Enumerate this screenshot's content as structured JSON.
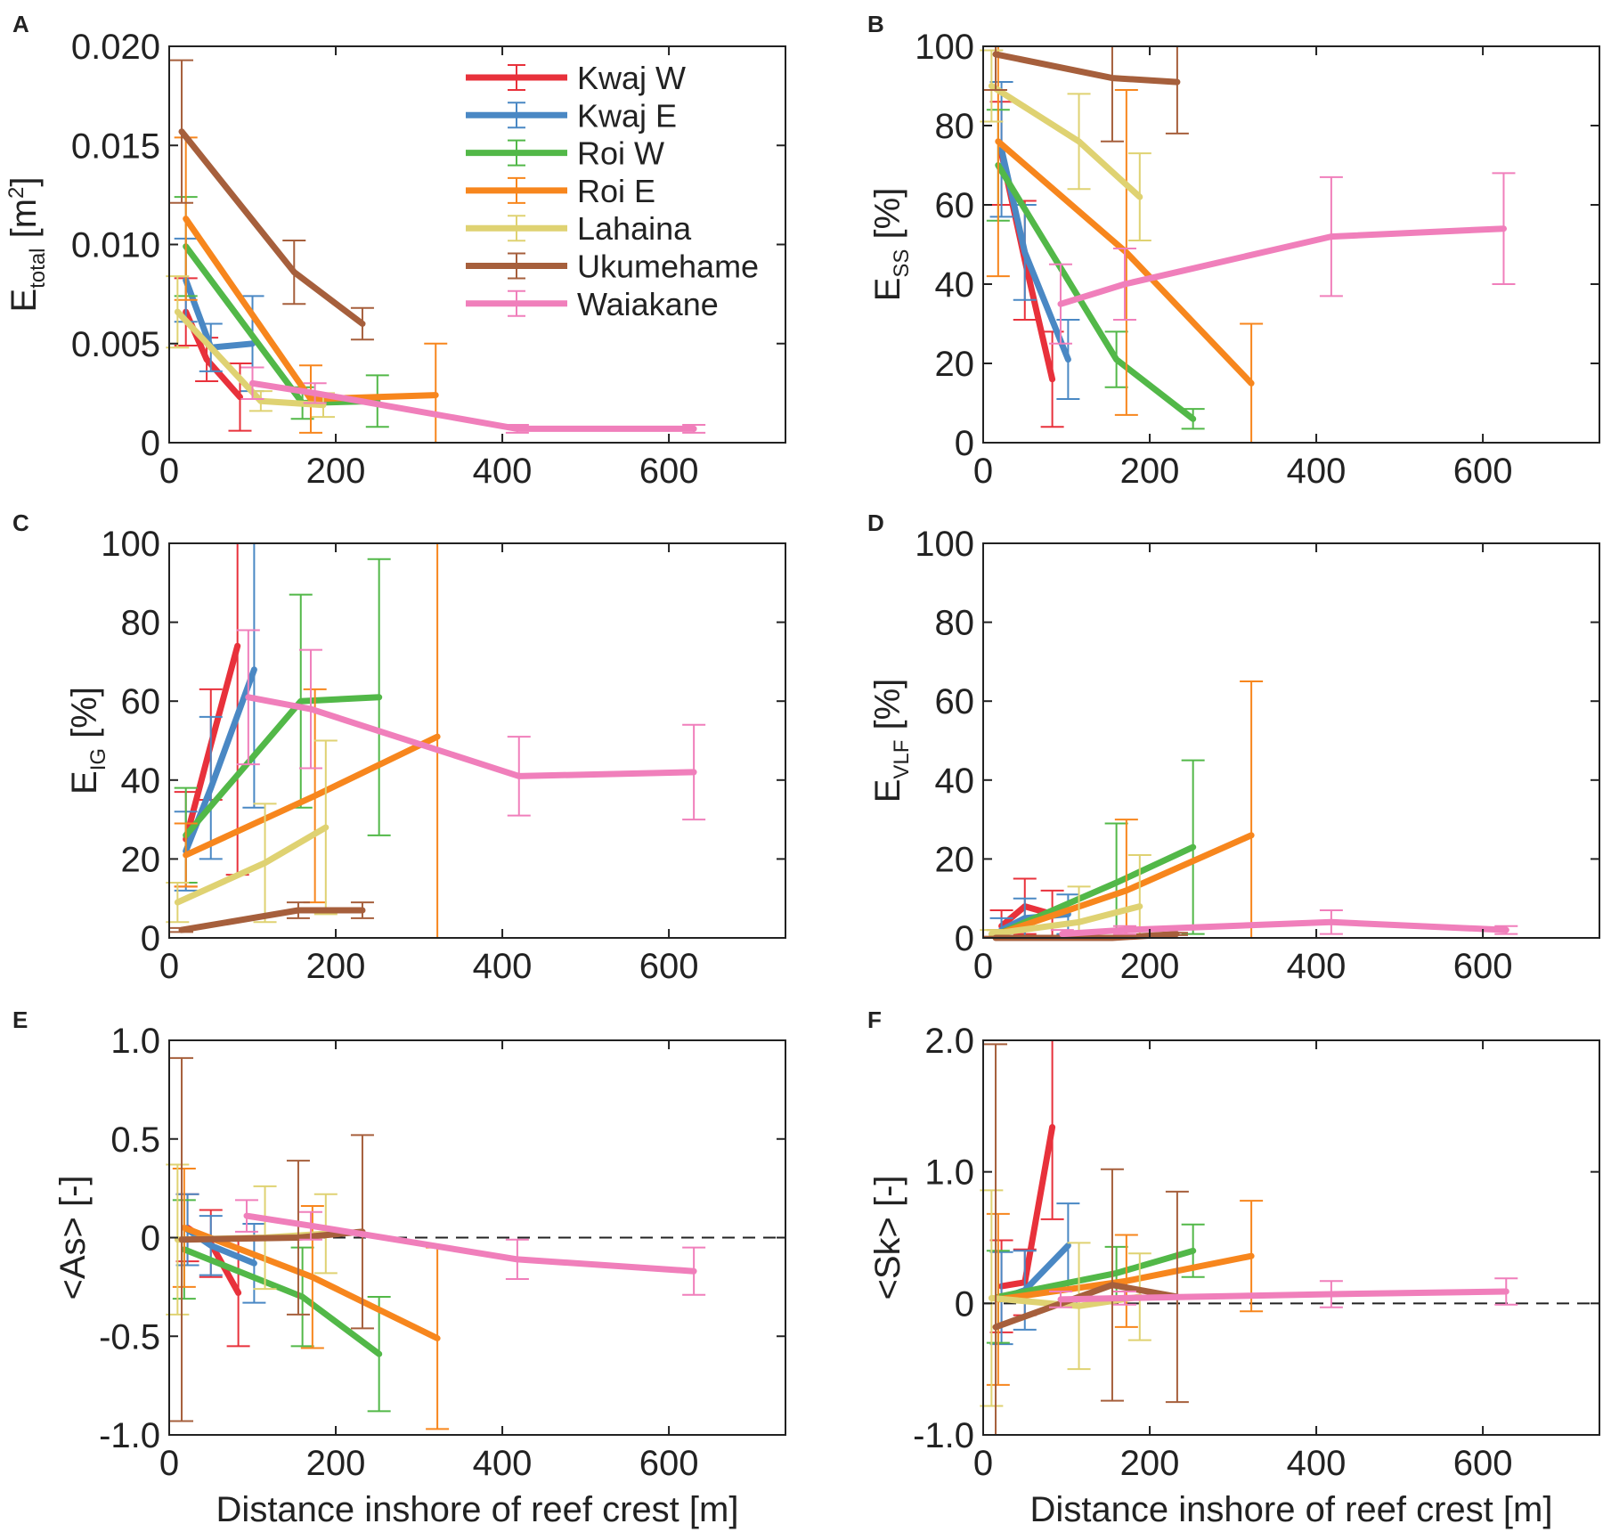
{
  "figure": {
    "xlabel": "Distance inshore of reef crest [m]"
  },
  "series_colors": {
    "Kwaj W": "#e8313b",
    "Kwaj E": "#4a88c4",
    "Roi W": "#52b848",
    "Roi E": "#f7861d",
    "Lahaina": "#dfd272",
    "Ukumehame": "#a65f3c",
    "Waiakane": "#f07fbb"
  },
  "legend": [
    "Kwaj W",
    "Kwaj E",
    "Roi W",
    "Roi E",
    "Lahaina",
    "Ukumehame",
    "Waiakane"
  ],
  "chart_data": [
    {
      "id": "A",
      "type": "line",
      "letter": "A",
      "ylabel_main": "E",
      "ylabel_sub": "total",
      "ylabel_rest": " [m",
      "ylabel_sup": "2",
      "ylabel_end": "]",
      "xlim": [
        0,
        740
      ],
      "ylim": [
        0,
        0.02
      ],
      "xticks": [
        0,
        200,
        400,
        600
      ],
      "xtick_labels": [
        "0",
        "200",
        "400",
        "600"
      ],
      "yticks": [
        0,
        0.005,
        0.01,
        0.015,
        0.02
      ],
      "ytick_labels": [
        "0",
        "0.005",
        "0.010",
        "0.015",
        "0.020"
      ],
      "xlabel": "",
      "zero_line": false,
      "show_legend": true,
      "series": [
        {
          "name": "Kwaj W",
          "x": [
            20,
            45,
            85
          ],
          "y": [
            0.0066,
            0.0042,
            0.0023
          ],
          "err": [
            0.0017,
            0.0011,
            0.0017
          ]
        },
        {
          "name": "Kwaj E",
          "x": [
            20,
            50,
            100
          ],
          "y": [
            0.0082,
            0.0048,
            0.005
          ],
          "err": [
            0.0021,
            0.0012,
            0.0024
          ]
        },
        {
          "name": "Roi W",
          "x": [
            20,
            160,
            250
          ],
          "y": [
            0.0099,
            0.002,
            0.0021
          ],
          "err": [
            0.0025,
            0.0008,
            0.0013
          ]
        },
        {
          "name": "Roi E",
          "x": [
            20,
            170,
            320
          ],
          "y": [
            0.0113,
            0.0022,
            0.0024
          ],
          "err": [
            0.0041,
            0.0017,
            0.0026
          ]
        },
        {
          "name": "Lahaina",
          "x": [
            10,
            110,
            185
          ],
          "y": [
            0.0066,
            0.0021,
            0.0019
          ],
          "err": [
            0.0018,
            0.0005,
            0.0006
          ]
        },
        {
          "name": "Ukumehame",
          "x": [
            15,
            150,
            232
          ],
          "y": [
            0.0157,
            0.0086,
            0.006
          ],
          "err": [
            0.0036,
            0.0016,
            0.0008
          ]
        },
        {
          "name": "Waiakane",
          "x": [
            100,
            175,
            418,
            630
          ],
          "y": [
            0.003,
            0.0025,
            0.0007,
            0.0007
          ],
          "err": [
            0.0008,
            0.0005,
            0.0002,
            0.0002
          ]
        }
      ]
    },
    {
      "id": "B",
      "type": "line",
      "letter": "B",
      "ylabel_main": "E",
      "ylabel_sub": "SS",
      "ylabel_rest": " [%]",
      "ylabel_sup": "",
      "ylabel_end": "",
      "xlim": [
        0,
        740
      ],
      "ylim": [
        0,
        100
      ],
      "xticks": [
        0,
        200,
        400,
        600
      ],
      "xtick_labels": [
        "0",
        "200",
        "400",
        "600"
      ],
      "yticks": [
        0,
        20,
        40,
        60,
        80,
        100
      ],
      "ytick_labels": [
        "0",
        "20",
        "40",
        "60",
        "80",
        "100"
      ],
      "xlabel": "",
      "zero_line": false,
      "show_legend": false,
      "series": [
        {
          "name": "Kwaj W",
          "x": [
            22,
            50,
            83
          ],
          "y": [
            73,
            46,
            16
          ],
          "err": [
            13,
            15,
            12
          ]
        },
        {
          "name": "Kwaj E",
          "x": [
            22,
            50,
            102
          ],
          "y": [
            74,
            48,
            21
          ],
          "err": [
            17,
            12,
            10
          ]
        },
        {
          "name": "Roi W",
          "x": [
            18,
            160,
            252
          ],
          "y": [
            70,
            21,
            6
          ],
          "err": [
            14,
            7,
            2.5
          ]
        },
        {
          "name": "Roi E",
          "x": [
            18,
            172,
            322
          ],
          "y": [
            76,
            48,
            15
          ],
          "err": [
            34,
            41,
            15
          ]
        },
        {
          "name": "Lahaina",
          "x": [
            10,
            115,
            188
          ],
          "y": [
            90,
            76,
            62
          ],
          "err": [
            9,
            12,
            11
          ]
        },
        {
          "name": "Ukumehame",
          "x": [
            15,
            155,
            233
          ],
          "y": [
            98,
            92,
            91
          ],
          "err": [
            9,
            16,
            13
          ]
        },
        {
          "name": "Waiakane",
          "x": [
            93,
            170,
            418,
            625
          ],
          "y": [
            35,
            40,
            52,
            54
          ],
          "err": [
            10,
            9,
            15,
            14
          ]
        }
      ]
    },
    {
      "id": "C",
      "type": "line",
      "letter": "C",
      "ylabel_main": "E",
      "ylabel_sub": "IG",
      "ylabel_rest": " [%]",
      "ylabel_sup": "",
      "ylabel_end": "",
      "xlim": [
        0,
        740
      ],
      "ylim": [
        0,
        100
      ],
      "xticks": [
        0,
        200,
        400,
        600
      ],
      "xtick_labels": [
        "0",
        "200",
        "400",
        "600"
      ],
      "yticks": [
        0,
        20,
        40,
        60,
        80,
        100
      ],
      "ytick_labels": [
        "0",
        "20",
        "40",
        "60",
        "80",
        "100"
      ],
      "xlabel": "",
      "zero_line": false,
      "show_legend": false,
      "series": [
        {
          "name": "Kwaj W",
          "x": [
            20,
            50,
            82
          ],
          "y": [
            25,
            49,
            74
          ],
          "err": [
            12,
            14,
            58
          ]
        },
        {
          "name": "Kwaj E",
          "x": [
            20,
            50,
            102
          ],
          "y": [
            22,
            38,
            68
          ],
          "err": [
            10,
            18,
            35
          ]
        },
        {
          "name": "Roi W",
          "x": [
            20,
            158,
            252
          ],
          "y": [
            26,
            60,
            61
          ],
          "err": [
            12,
            27,
            35
          ]
        },
        {
          "name": "Roi E",
          "x": [
            20,
            175,
            322
          ],
          "y": [
            21,
            36,
            51
          ],
          "err": [
            8,
            27,
            55
          ]
        },
        {
          "name": "Lahaina",
          "x": [
            10,
            115,
            188
          ],
          "y": [
            9,
            19,
            28
          ],
          "err": [
            5,
            15,
            22
          ]
        },
        {
          "name": "Ukumehame",
          "x": [
            15,
            155,
            232
          ],
          "y": [
            2,
            7,
            7
          ],
          "err": [
            0.5,
            2,
            2
          ]
        },
        {
          "name": "Waiakane",
          "x": [
            95,
            170,
            420,
            630
          ],
          "y": [
            61,
            58,
            41,
            42
          ],
          "err": [
            17,
            15,
            10,
            12
          ]
        }
      ]
    },
    {
      "id": "D",
      "type": "line",
      "letter": "D",
      "ylabel_main": "E",
      "ylabel_sub": "VLF",
      "ylabel_rest": " [%]",
      "ylabel_sup": "",
      "ylabel_end": "",
      "xlim": [
        0,
        740
      ],
      "ylim": [
        0,
        100
      ],
      "xticks": [
        0,
        200,
        400,
        600
      ],
      "xtick_labels": [
        "0",
        "200",
        "400",
        "600"
      ],
      "yticks": [
        0,
        20,
        40,
        60,
        80,
        100
      ],
      "ytick_labels": [
        "0",
        "20",
        "40",
        "60",
        "80",
        "100"
      ],
      "xlabel": "",
      "zero_line": false,
      "show_legend": false,
      "series": [
        {
          "name": "Kwaj W",
          "x": [
            22,
            50,
            83
          ],
          "y": [
            3,
            8,
            6
          ],
          "err": [
            4,
            7,
            6
          ]
        },
        {
          "name": "Kwaj E",
          "x": [
            22,
            50,
            102
          ],
          "y": [
            2,
            5,
            6
          ],
          "err": [
            3,
            5,
            5
          ]
        },
        {
          "name": "Roi W",
          "x": [
            18,
            160,
            252
          ],
          "y": [
            1,
            14,
            23
          ],
          "err": [
            1,
            15,
            22
          ]
        },
        {
          "name": "Roi E",
          "x": [
            18,
            172,
            322
          ],
          "y": [
            1,
            12,
            26
          ],
          "err": [
            1,
            18,
            39
          ]
        },
        {
          "name": "Lahaina",
          "x": [
            10,
            115,
            188
          ],
          "y": [
            1,
            4,
            8
          ],
          "err": [
            1,
            9,
            13
          ]
        },
        {
          "name": "Ukumehame",
          "x": [
            15,
            155,
            232
          ],
          "y": [
            0,
            0,
            1
          ],
          "err": [
            0.3,
            0.3,
            0.3
          ]
        },
        {
          "name": "Waiakane",
          "x": [
            95,
            170,
            418,
            628
          ],
          "y": [
            1,
            2,
            4,
            2
          ],
          "err": [
            1,
            1,
            3,
            1
          ]
        }
      ]
    },
    {
      "id": "E",
      "type": "line",
      "letter": "E",
      "ylabel_main": "<As> [-]",
      "ylabel_sub": "",
      "ylabel_rest": "",
      "ylabel_sup": "",
      "ylabel_end": "",
      "xlim": [
        0,
        740
      ],
      "ylim": [
        -1.0,
        1.0
      ],
      "xticks": [
        0,
        200,
        400,
        600
      ],
      "xtick_labels": [
        "0",
        "200",
        "400",
        "600"
      ],
      "yticks": [
        -1.0,
        -0.5,
        0,
        0.5,
        1.0
      ],
      "ytick_labels": [
        "-1.0",
        "-0.5",
        "0",
        "0.5",
        "1.0"
      ],
      "xlabel": "Distance inshore of reef crest [m]",
      "zero_line": true,
      "show_legend": false,
      "series": [
        {
          "name": "Kwaj W",
          "x": [
            22,
            50,
            83
          ],
          "y": [
            0.05,
            -0.03,
            -0.28
          ],
          "err": [
            0.17,
            0.17,
            0.27
          ]
        },
        {
          "name": "Kwaj E",
          "x": [
            22,
            50,
            102
          ],
          "y": [
            0.04,
            -0.04,
            -0.13
          ],
          "err": [
            0.18,
            0.15,
            0.2
          ]
        },
        {
          "name": "Roi W",
          "x": [
            18,
            160,
            252
          ],
          "y": [
            -0.06,
            -0.3,
            -0.59
          ],
          "err": [
            0.25,
            0.25,
            0.29
          ]
        },
        {
          "name": "Roi E",
          "x": [
            18,
            172,
            322
          ],
          "y": [
            0.05,
            -0.2,
            -0.51
          ],
          "err": [
            0.3,
            0.36,
            0.46
          ]
        },
        {
          "name": "Lahaina",
          "x": [
            10,
            115,
            188
          ],
          "y": [
            -0.01,
            0,
            0.02
          ],
          "err": [
            0.38,
            0.26,
            0.2
          ]
        },
        {
          "name": "Ukumehame",
          "x": [
            15,
            155,
            232
          ],
          "y": [
            -0.01,
            0,
            0.03
          ],
          "err": [
            0.92,
            0.39,
            0.49
          ]
        },
        {
          "name": "Waiakane",
          "x": [
            93,
            170,
            418,
            630
          ],
          "y": [
            0.11,
            0.06,
            -0.11,
            -0.17
          ],
          "err": [
            0.08,
            0.07,
            0.1,
            0.12
          ]
        }
      ]
    },
    {
      "id": "F",
      "type": "line",
      "letter": "F",
      "ylabel_main": "<Sk> [-]",
      "ylabel_sub": "",
      "ylabel_rest": "",
      "ylabel_sup": "",
      "ylabel_end": "",
      "xlim": [
        0,
        740
      ],
      "ylim": [
        -1.0,
        2.0
      ],
      "xticks": [
        0,
        200,
        400,
        600
      ],
      "xtick_labels": [
        "0",
        "200",
        "400",
        "600"
      ],
      "yticks": [
        -1.0,
        0,
        1.0,
        2.0
      ],
      "ytick_labels": [
        "-1.0",
        "0",
        "1.0",
        "2.0"
      ],
      "xlabel": "Distance inshore of reef crest [m]",
      "zero_line": true,
      "show_legend": false,
      "series": [
        {
          "name": "Kwaj W",
          "x": [
            22,
            50,
            83
          ],
          "y": [
            0.13,
            0.16,
            1.34
          ],
          "err": [
            0.35,
            0.25,
            0.7
          ]
        },
        {
          "name": "Kwaj E",
          "x": [
            22,
            50,
            102
          ],
          "y": [
            0.04,
            0.1,
            0.44
          ],
          "err": [
            0.35,
            0.3,
            0.32
          ]
        },
        {
          "name": "Roi W",
          "x": [
            18,
            160,
            252
          ],
          "y": [
            0.05,
            0.23,
            0.4
          ],
          "err": [
            0.35,
            0.2,
            0.2
          ]
        },
        {
          "name": "Roi E",
          "x": [
            18,
            172,
            322
          ],
          "y": [
            0.03,
            0.17,
            0.36
          ],
          "err": [
            0.65,
            0.35,
            0.42
          ]
        },
        {
          "name": "Lahaina",
          "x": [
            10,
            115,
            188
          ],
          "y": [
            0.04,
            -0.02,
            0.05
          ],
          "err": [
            0.82,
            0.48,
            0.33
          ]
        },
        {
          "name": "Ukumehame",
          "x": [
            15,
            155,
            233
          ],
          "y": [
            -0.18,
            0.14,
            0.05
          ],
          "err": [
            2.15,
            0.88,
            0.8
          ]
        },
        {
          "name": "Waiakane",
          "x": [
            93,
            170,
            418,
            628
          ],
          "y": [
            0.03,
            0.04,
            0.07,
            0.09
          ],
          "err": [
            0.06,
            0.05,
            0.1,
            0.1
          ]
        }
      ]
    }
  ]
}
